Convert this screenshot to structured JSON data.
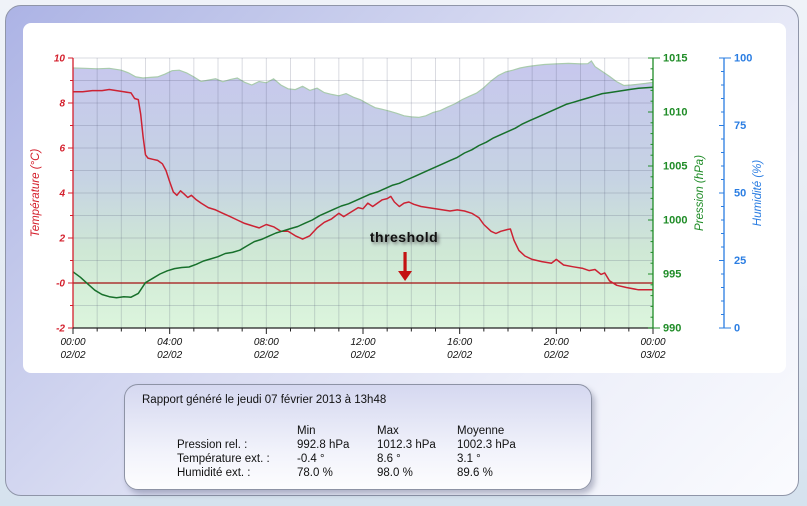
{
  "report": {
    "title": "Rapport généré le jeudi 07 février 2013 à 13h48",
    "columns": [
      "Min",
      "Max",
      "Moyenne"
    ],
    "rows": [
      {
        "label": "Pression rel. :",
        "min": "992.8 hPa",
        "max": "1012.3 hPa",
        "mean": "1002.3 hPa"
      },
      {
        "label": "Température ext. :",
        "min": "-0.4 °",
        "max": "8.6 °",
        "mean": "3.1 °"
      },
      {
        "label": "Humidité ext. :",
        "min": "78.0 %",
        "max": "98.0 %",
        "mean": "89.6 %"
      }
    ]
  },
  "chart_data": {
    "type": "line",
    "x_range_hours": [
      0,
      24
    ],
    "grid": {
      "vertical_every_hours": 1,
      "horizontal_every_deg": 1,
      "color": "rgba(70,75,105,0.20)"
    },
    "threshold": {
      "label": "threshold",
      "value_temperature_c": 0,
      "line_color": "#a31111",
      "arrow_color": "#c41212",
      "arrow_hour": 13.74
    },
    "humidity_fill_stops": [
      [
        0,
        "#c7c7ee"
      ],
      [
        0.45,
        "#c6d3e3"
      ],
      [
        0.72,
        "#cfe8d5"
      ],
      [
        1,
        "#dcf5dd"
      ]
    ],
    "axes": {
      "temperature": {
        "title": "Température (°C)",
        "color": "#d41f2c",
        "range": [
          -2,
          10
        ],
        "ticks": [
          [
            10,
            "10"
          ],
          [
            8,
            "8"
          ],
          [
            6,
            "6"
          ],
          [
            4,
            "4"
          ],
          [
            2,
            "2"
          ],
          [
            0,
            "-0"
          ],
          [
            -2,
            "-2"
          ]
        ]
      },
      "pressure": {
        "title": "Pression (hPa)",
        "color": "#1f8c27",
        "range": [
          990,
          1015
        ],
        "ticks": [
          [
            1015,
            "1015"
          ],
          [
            1010,
            "1010"
          ],
          [
            1005,
            "1005"
          ],
          [
            1000,
            "1000"
          ],
          [
            995,
            "995"
          ],
          [
            990,
            "990"
          ]
        ]
      },
      "humidity": {
        "title": "Humidité (%)",
        "color": "#2a7de2",
        "range": [
          0,
          100
        ],
        "ticks": [
          [
            100,
            "100"
          ],
          [
            75,
            "75"
          ],
          [
            50,
            "50"
          ],
          [
            25,
            "25"
          ],
          [
            0,
            "0"
          ]
        ]
      },
      "time": {
        "color": "#222222",
        "ticks": [
          {
            "hour": 0,
            "time": "00:00",
            "date": "02/02"
          },
          {
            "hour": 4,
            "time": "04:00",
            "date": "02/02"
          },
          {
            "hour": 8,
            "time": "08:00",
            "date": "02/02"
          },
          {
            "hour": 12,
            "time": "12:00",
            "date": "02/02"
          },
          {
            "hour": 16,
            "time": "16:00",
            "date": "02/02"
          },
          {
            "hour": 20,
            "time": "20:00",
            "date": "02/02"
          },
          {
            "hour": 24,
            "time": "00:00",
            "date": "03/02"
          }
        ]
      }
    },
    "series": [
      {
        "name": "temperature",
        "unit": "°C",
        "color": "#cc2233",
        "style": "line",
        "points": [
          [
            0,
            8.5
          ],
          [
            0.4,
            8.5
          ],
          [
            0.8,
            8.55
          ],
          [
            1.2,
            8.55
          ],
          [
            1.5,
            8.6
          ],
          [
            1.8,
            8.55
          ],
          [
            2.1,
            8.5
          ],
          [
            2.4,
            8.45
          ],
          [
            2.55,
            8.2
          ],
          [
            2.7,
            8.15
          ],
          [
            2.8,
            7.5
          ],
          [
            2.9,
            6.5
          ],
          [
            3.0,
            5.7
          ],
          [
            3.1,
            5.55
          ],
          [
            3.3,
            5.5
          ],
          [
            3.5,
            5.45
          ],
          [
            3.7,
            5.3
          ],
          [
            3.85,
            5.0
          ],
          [
            4.0,
            4.5
          ],
          [
            4.15,
            4.05
          ],
          [
            4.3,
            3.9
          ],
          [
            4.45,
            4.1
          ],
          [
            4.6,
            3.95
          ],
          [
            4.75,
            3.8
          ],
          [
            4.9,
            3.9
          ],
          [
            5.1,
            3.7
          ],
          [
            5.3,
            3.55
          ],
          [
            5.6,
            3.35
          ],
          [
            5.9,
            3.25
          ],
          [
            6.2,
            3.1
          ],
          [
            6.5,
            2.95
          ],
          [
            6.8,
            2.8
          ],
          [
            7.1,
            2.65
          ],
          [
            7.4,
            2.55
          ],
          [
            7.7,
            2.45
          ],
          [
            8.0,
            2.6
          ],
          [
            8.3,
            2.5
          ],
          [
            8.6,
            2.3
          ],
          [
            8.9,
            2.3
          ],
          [
            9.2,
            2.1
          ],
          [
            9.5,
            1.95
          ],
          [
            9.8,
            2.1
          ],
          [
            10.1,
            2.45
          ],
          [
            10.4,
            2.7
          ],
          [
            10.7,
            2.85
          ],
          [
            11.0,
            3.1
          ],
          [
            11.2,
            2.95
          ],
          [
            11.5,
            3.15
          ],
          [
            11.8,
            3.35
          ],
          [
            12.0,
            3.3
          ],
          [
            12.2,
            3.55
          ],
          [
            12.4,
            3.4
          ],
          [
            12.6,
            3.55
          ],
          [
            12.8,
            3.7
          ],
          [
            13.0,
            3.75
          ],
          [
            13.15,
            3.85
          ],
          [
            13.3,
            3.6
          ],
          [
            13.5,
            3.4
          ],
          [
            13.7,
            3.55
          ],
          [
            13.9,
            3.6
          ],
          [
            14.1,
            3.5
          ],
          [
            14.4,
            3.4
          ],
          [
            14.7,
            3.35
          ],
          [
            15.0,
            3.3
          ],
          [
            15.3,
            3.25
          ],
          [
            15.6,
            3.2
          ],
          [
            15.9,
            3.25
          ],
          [
            16.2,
            3.2
          ],
          [
            16.5,
            3.1
          ],
          [
            16.8,
            2.9
          ],
          [
            17.0,
            2.6
          ],
          [
            17.3,
            2.3
          ],
          [
            17.5,
            2.2
          ],
          [
            17.7,
            2.3
          ],
          [
            18.0,
            2.38
          ],
          [
            18.1,
            2.4
          ],
          [
            18.25,
            1.9
          ],
          [
            18.45,
            1.45
          ],
          [
            18.7,
            1.2
          ],
          [
            19.0,
            1.05
          ],
          [
            19.4,
            0.95
          ],
          [
            19.8,
            0.88
          ],
          [
            20.0,
            1.05
          ],
          [
            20.3,
            0.8
          ],
          [
            20.7,
            0.72
          ],
          [
            21.1,
            0.65
          ],
          [
            21.35,
            0.55
          ],
          [
            21.6,
            0.6
          ],
          [
            21.85,
            0.38
          ],
          [
            22.0,
            0.45
          ],
          [
            22.2,
            0.1
          ],
          [
            22.5,
            -0.1
          ],
          [
            22.9,
            -0.2
          ],
          [
            23.4,
            -0.3
          ],
          [
            24,
            -0.3
          ]
        ]
      },
      {
        "name": "pressure",
        "unit": "hPa",
        "color": "#17702b",
        "style": "line",
        "points": [
          [
            0,
            995.2
          ],
          [
            0.3,
            994.7
          ],
          [
            0.6,
            994.1
          ],
          [
            0.9,
            993.5
          ],
          [
            1.2,
            993.1
          ],
          [
            1.5,
            992.9
          ],
          [
            1.8,
            992.8
          ],
          [
            2.1,
            992.9
          ],
          [
            2.4,
            992.85
          ],
          [
            2.7,
            993.2
          ],
          [
            3.0,
            994.2
          ],
          [
            3.3,
            994.6
          ],
          [
            3.6,
            995.0
          ],
          [
            3.9,
            995.3
          ],
          [
            4.2,
            995.5
          ],
          [
            4.5,
            995.6
          ],
          [
            4.8,
            995.65
          ],
          [
            5.1,
            995.9
          ],
          [
            5.4,
            996.2
          ],
          [
            5.7,
            996.4
          ],
          [
            6.0,
            996.6
          ],
          [
            6.3,
            996.9
          ],
          [
            6.6,
            997.0
          ],
          [
            6.9,
            997.2
          ],
          [
            7.2,
            997.6
          ],
          [
            7.5,
            998.0
          ],
          [
            7.8,
            998.2
          ],
          [
            8.1,
            998.5
          ],
          [
            8.4,
            998.8
          ],
          [
            8.7,
            999.0
          ],
          [
            9.0,
            999.2
          ],
          [
            9.3,
            999.4
          ],
          [
            9.6,
            999.7
          ],
          [
            9.9,
            1000.0
          ],
          [
            10.2,
            1000.4
          ],
          [
            10.5,
            1000.7
          ],
          [
            10.8,
            1001.0
          ],
          [
            11.1,
            1001.3
          ],
          [
            11.4,
            1001.5
          ],
          [
            11.7,
            1001.8
          ],
          [
            12.0,
            1002.1
          ],
          [
            12.3,
            1002.4
          ],
          [
            12.6,
            1002.6
          ],
          [
            12.9,
            1002.9
          ],
          [
            13.2,
            1003.2
          ],
          [
            13.5,
            1003.4
          ],
          [
            13.8,
            1003.7
          ],
          [
            14.1,
            1004.0
          ],
          [
            14.4,
            1004.3
          ],
          [
            14.7,
            1004.6
          ],
          [
            15.0,
            1004.9
          ],
          [
            15.3,
            1005.2
          ],
          [
            15.6,
            1005.5
          ],
          [
            15.9,
            1005.8
          ],
          [
            16.2,
            1006.2
          ],
          [
            16.5,
            1006.5
          ],
          [
            16.8,
            1006.9
          ],
          [
            17.1,
            1007.2
          ],
          [
            17.4,
            1007.6
          ],
          [
            17.7,
            1007.9
          ],
          [
            18.0,
            1008.2
          ],
          [
            18.3,
            1008.5
          ],
          [
            18.6,
            1008.9
          ],
          [
            18.9,
            1009.2
          ],
          [
            19.2,
            1009.5
          ],
          [
            19.5,
            1009.8
          ],
          [
            19.8,
            1010.1
          ],
          [
            20.1,
            1010.4
          ],
          [
            20.4,
            1010.7
          ],
          [
            20.7,
            1010.9
          ],
          [
            21.0,
            1011.1
          ],
          [
            21.3,
            1011.3
          ],
          [
            21.6,
            1011.5
          ],
          [
            21.9,
            1011.7
          ],
          [
            22.2,
            1011.8
          ],
          [
            22.5,
            1011.9
          ],
          [
            22.8,
            1012.0
          ],
          [
            23.1,
            1012.1
          ],
          [
            23.4,
            1012.2
          ],
          [
            23.7,
            1012.25
          ],
          [
            24,
            1012.3
          ]
        ]
      },
      {
        "name": "humidity",
        "unit": "%",
        "color": "#a9cbad",
        "style": "area",
        "points": [
          [
            0,
            96.3
          ],
          [
            0.5,
            96.2
          ],
          [
            1.0,
            96.0
          ],
          [
            1.5,
            96.2
          ],
          [
            2.0,
            95.5
          ],
          [
            2.3,
            94.5
          ],
          [
            2.6,
            93.0
          ],
          [
            2.9,
            92.6
          ],
          [
            3.2,
            92.8
          ],
          [
            3.5,
            93.0
          ],
          [
            3.8,
            94.0
          ],
          [
            4.1,
            95.3
          ],
          [
            4.4,
            95.5
          ],
          [
            4.7,
            94.5
          ],
          [
            5.0,
            93.0
          ],
          [
            5.3,
            91.3
          ],
          [
            5.6,
            91.8
          ],
          [
            5.9,
            92.3
          ],
          [
            6.2,
            91.2
          ],
          [
            6.5,
            92.0
          ],
          [
            6.8,
            92.6
          ],
          [
            7.1,
            91.0
          ],
          [
            7.4,
            90.0
          ],
          [
            7.7,
            91.3
          ],
          [
            8.0,
            90.8
          ],
          [
            8.3,
            92.3
          ],
          [
            8.6,
            90.0
          ],
          [
            8.9,
            88.6
          ],
          [
            9.2,
            88.3
          ],
          [
            9.5,
            89.5
          ],
          [
            9.8,
            88.0
          ],
          [
            10.1,
            88.8
          ],
          [
            10.4,
            87.2
          ],
          [
            10.7,
            86.5
          ],
          [
            11.0,
            86.0
          ],
          [
            11.3,
            86.8
          ],
          [
            11.6,
            85.5
          ],
          [
            11.9,
            84.5
          ],
          [
            12.2,
            83.0
          ],
          [
            12.5,
            81.6
          ],
          [
            12.8,
            81.0
          ],
          [
            13.1,
            80.3
          ],
          [
            13.4,
            79.5
          ],
          [
            13.7,
            78.6
          ],
          [
            14.0,
            78.2
          ],
          [
            14.3,
            78.0
          ],
          [
            14.6,
            78.6
          ],
          [
            14.9,
            79.8
          ],
          [
            15.2,
            80.5
          ],
          [
            15.5,
            81.8
          ],
          [
            15.8,
            83.0
          ],
          [
            16.1,
            84.6
          ],
          [
            16.4,
            85.8
          ],
          [
            16.7,
            87.0
          ],
          [
            17.0,
            89.0
          ],
          [
            17.3,
            91.5
          ],
          [
            17.6,
            93.5
          ],
          [
            17.9,
            94.8
          ],
          [
            18.2,
            95.5
          ],
          [
            18.5,
            96.3
          ],
          [
            18.8,
            96.8
          ],
          [
            19.1,
            97.2
          ],
          [
            19.5,
            97.6
          ],
          [
            20.0,
            97.8
          ],
          [
            20.5,
            98.0
          ],
          [
            21.0,
            97.8
          ],
          [
            21.3,
            97.9
          ],
          [
            21.45,
            98.9
          ],
          [
            21.6,
            96.8
          ],
          [
            21.9,
            95.0
          ],
          [
            22.2,
            93.2
          ],
          [
            22.5,
            91.2
          ],
          [
            22.8,
            89.8
          ],
          [
            23.1,
            90.0
          ],
          [
            23.4,
            90.3
          ],
          [
            23.7,
            90.6
          ],
          [
            24,
            91.0
          ]
        ]
      }
    ]
  }
}
